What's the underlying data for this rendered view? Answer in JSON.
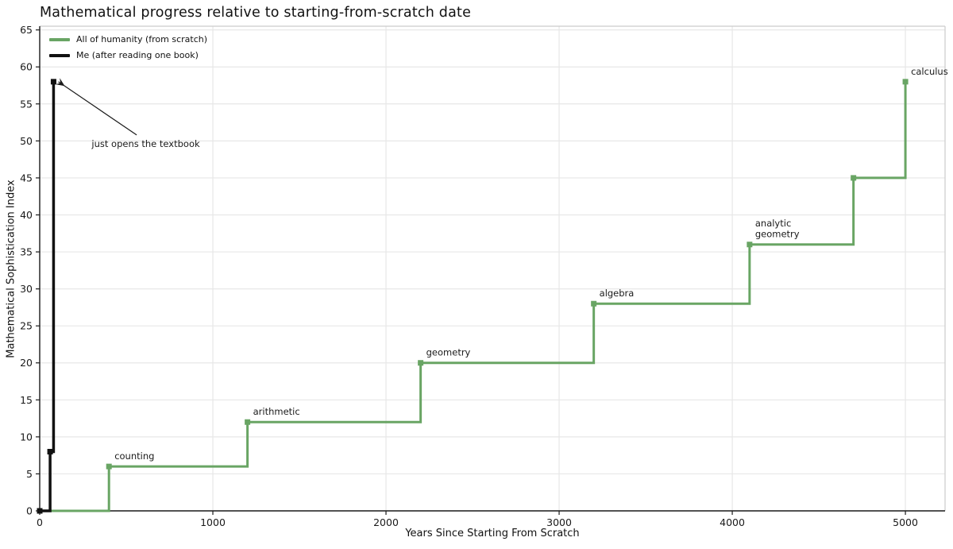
{
  "chart_data": {
    "type": "line",
    "subtype": "step-post",
    "title": "Mathematical progress relative to starting-from-scratch date",
    "xlabel": "Years Since Starting From Scratch",
    "ylabel": "Mathematical Sophistication Index",
    "xlim": [
      0,
      5229
    ],
    "ylim": [
      0,
      65.5
    ],
    "xticks": [
      0,
      1000,
      2000,
      3000,
      4000,
      5000
    ],
    "yticks": [
      0,
      5,
      10,
      15,
      20,
      25,
      30,
      35,
      40,
      45,
      50,
      55,
      60,
      65
    ],
    "grid": true,
    "legend_position": "upper-left",
    "colors": {
      "humanity": "#69a564",
      "me": "#111111",
      "gridline": "#e7e7e7",
      "light_spine": "#cccccc",
      "dark_spine": "#1a1a1a",
      "label_text": "#1a1a1a"
    },
    "series": [
      {
        "id": "humanity",
        "name": "All of humanity (from scratch)",
        "color": "#69a564",
        "line_width": 3,
        "points": [
          [
            0,
            0
          ],
          [
            400,
            6
          ],
          [
            1200,
            12
          ],
          [
            2200,
            20
          ],
          [
            3200,
            28
          ],
          [
            4100,
            36
          ],
          [
            4700,
            45
          ],
          [
            5000,
            58
          ]
        ],
        "markers": [
          [
            400,
            6
          ],
          [
            1200,
            12
          ],
          [
            2200,
            20
          ],
          [
            3200,
            28
          ],
          [
            4100,
            36
          ],
          [
            4700,
            45
          ],
          [
            5000,
            58
          ]
        ],
        "milestone_labels": [
          {
            "text": "counting",
            "x": 400,
            "y": 6
          },
          {
            "text": "arithmetic",
            "x": 1200,
            "y": 12
          },
          {
            "text": "geometry",
            "x": 2200,
            "y": 20
          },
          {
            "text": "algebra",
            "x": 3200,
            "y": 28
          },
          {
            "text": "analytic\ngeometry",
            "x": 4100,
            "y": 36
          },
          {
            "text": "calculus",
            "x": 5000,
            "y": 58
          }
        ]
      },
      {
        "id": "me",
        "name": "Me (after reading one book)",
        "color": "#111111",
        "line_width": 3.5,
        "points": [
          [
            0,
            0
          ],
          [
            60,
            8
          ],
          [
            80,
            58
          ]
        ],
        "markers": [
          [
            0,
            0
          ],
          [
            60,
            8
          ],
          [
            80,
            58
          ]
        ],
        "milestone_labels": []
      }
    ],
    "annotation": {
      "text": "just opens the textbook",
      "text_xy": [
        300,
        49.2
      ],
      "arrow_from_xy": [
        560,
        50.8
      ],
      "arrow_to_xy": [
        108,
        58.0
      ]
    }
  }
}
